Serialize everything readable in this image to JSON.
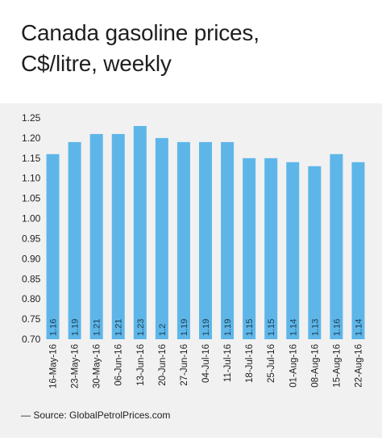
{
  "chart_data": {
    "type": "bar",
    "title": [
      "Canada gasoline prices,",
      "C$/litre, weekly"
    ],
    "xlabel": "",
    "ylabel": "",
    "categories": [
      "16-May-16",
      "23-May-16",
      "30-May-16",
      "06-Jun-16",
      "13-Jun-16",
      "20-Jun-16",
      "27-Jun-16",
      "04-Jul-16",
      "11-Jul-16",
      "18-Jul-16",
      "25-Jul-16",
      "01-Aug-16",
      "08-Aug-16",
      "15-Aug-16",
      "22-Aug-16"
    ],
    "values": [
      1.16,
      1.19,
      1.21,
      1.21,
      1.23,
      1.2,
      1.19,
      1.19,
      1.19,
      1.15,
      1.15,
      1.14,
      1.13,
      1.16,
      1.14
    ],
    "data_labels": [
      "1.16",
      "1.19",
      "1.21",
      "1.21",
      "1.23",
      "1.2",
      "1.19",
      "1.19",
      "1.19",
      "1.15",
      "1.15",
      "1.14",
      "1.13",
      "1.16",
      "1.14"
    ],
    "ylim": [
      0.7,
      1.25
    ],
    "yticks": [
      "0.70",
      "0.75",
      "0.80",
      "0.85",
      "0.90",
      "0.95",
      "1.00",
      "1.05",
      "1.10",
      "1.15",
      "1.20",
      "1.25"
    ],
    "grid": false,
    "bar_color": "#5eb6e8",
    "background_color": "#f1f1f2",
    "source": "— Source: GlobalPetrolPrices.com"
  }
}
